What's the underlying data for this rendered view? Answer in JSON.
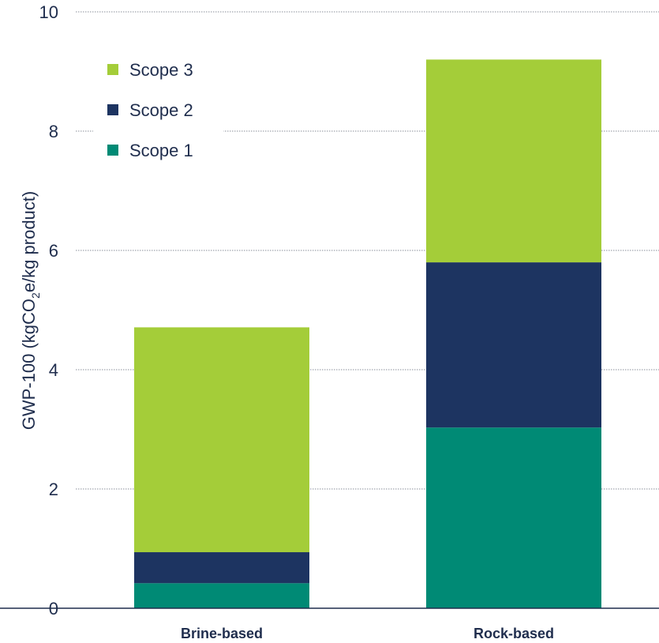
{
  "chart_data": {
    "type": "bar",
    "stacked": true,
    "categories": [
      "Brine-based",
      "Rock-based"
    ],
    "series": [
      {
        "name": "Scope 1",
        "color": "#008a75",
        "values": [
          0.42,
          3.03
        ]
      },
      {
        "name": "Scope 2",
        "color": "#1d3461",
        "values": [
          0.52,
          2.77
        ]
      },
      {
        "name": "Scope 3",
        "color": "#a4cd39",
        "values": [
          3.77,
          3.4
        ]
      }
    ],
    "ylabel": {
      "main": "GWP-100 (kgCO",
      "subscript": "2",
      "rest": "e/kg product)"
    },
    "ylim": [
      0,
      10
    ],
    "yticks": [
      "0",
      "2",
      "4",
      "6",
      "8",
      "10"
    ],
    "grid": true,
    "legend_position": "top-left",
    "legend_order": [
      "Scope 3",
      "Scope 2",
      "Scope 1"
    ]
  }
}
